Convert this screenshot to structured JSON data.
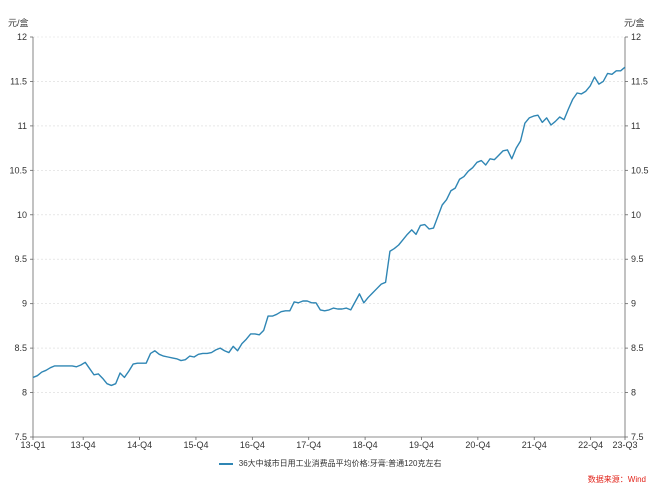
{
  "chart_data": {
    "type": "line",
    "unit_left": "元/盒",
    "unit_right": "元/盒",
    "ylim": [
      7.5,
      12
    ],
    "yticks": [
      "7.5",
      "8",
      "8.5",
      "9",
      "9.5",
      "10",
      "10.5",
      "11",
      "11.5",
      "12"
    ],
    "xticks": [
      "13-Q1",
      "13-Q4",
      "14-Q4",
      "15-Q4",
      "16-Q4",
      "17-Q4",
      "18-Q4",
      "19-Q4",
      "20-Q4",
      "21-Q4",
      "22-Q4",
      "23-Q3"
    ],
    "grid": true,
    "legend_position": "bottom",
    "color": "#2f86b4",
    "series": [
      {
        "name": "36大中城市日用工业消费品平均价格:牙膏:普通120克左右",
        "values": [
          8.17,
          8.19,
          8.23,
          8.25,
          8.28,
          8.3,
          8.3,
          8.3,
          8.3,
          8.3,
          8.29,
          8.31,
          8.34,
          8.27,
          8.2,
          8.21,
          8.16,
          8.1,
          8.08,
          8.1,
          8.22,
          8.17,
          8.24,
          8.32,
          8.33,
          8.33,
          8.33,
          8.44,
          8.47,
          8.43,
          8.41,
          8.4,
          8.39,
          8.38,
          8.36,
          8.37,
          8.41,
          8.4,
          8.43,
          8.44,
          8.44,
          8.45,
          8.48,
          8.5,
          8.47,
          8.45,
          8.52,
          8.47,
          8.55,
          8.6,
          8.66,
          8.66,
          8.65,
          8.7,
          8.86,
          8.86,
          8.88,
          8.91,
          8.92,
          8.92,
          9.02,
          9.01,
          9.03,
          9.03,
          9.01,
          9.01,
          8.93,
          8.92,
          8.93,
          8.95,
          8.94,
          8.94,
          8.95,
          8.93,
          9.02,
          9.11,
          9.01,
          9.07,
          9.12,
          9.17,
          9.22,
          9.24,
          9.59,
          9.62,
          9.66,
          9.72,
          9.78,
          9.83,
          9.78,
          9.88,
          9.89,
          9.84,
          9.85,
          9.98,
          10.11,
          10.17,
          10.27,
          10.3,
          10.4,
          10.43,
          10.49,
          10.53,
          10.59,
          10.61,
          10.56,
          10.63,
          10.62,
          10.67,
          10.72,
          10.73,
          10.63,
          10.75,
          10.83,
          11.03,
          11.09,
          11.11,
          11.12,
          11.04,
          11.09,
          11.01,
          11.05,
          11.1,
          11.07,
          11.19,
          11.3,
          11.37,
          11.36,
          11.39,
          11.45,
          11.55,
          11.47,
          11.5,
          11.59,
          11.58,
          11.62,
          11.62,
          11.66
        ]
      }
    ]
  },
  "source_label": "数据来源：Wind"
}
